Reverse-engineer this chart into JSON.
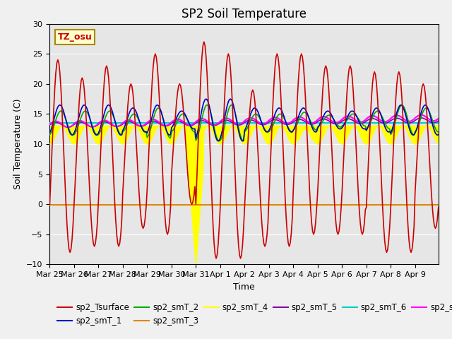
{
  "title": "SP2 Soil Temperature",
  "ylabel": "Soil Temperature (C)",
  "xlabel": "Time",
  "annotation": "TZ_osu",
  "ylim": [
    -10,
    30
  ],
  "x_tick_labels": [
    "Mar 25",
    "Mar 26",
    "Mar 27",
    "Mar 28",
    "Mar 29",
    "Mar 30",
    "Mar 31",
    "Apr 1",
    "Apr 2",
    "Apr 3",
    "Apr 4",
    "Apr 5",
    "Apr 6",
    "Apr 7",
    "Apr 8",
    "Apr 9"
  ],
  "series_colors": {
    "sp2_Tsurface": "#cc0000",
    "sp2_smT_1": "#0000cc",
    "sp2_smT_2": "#00aa00",
    "sp2_smT_3": "#dd8800",
    "sp2_smT_4": "#ffff00",
    "sp2_smT_5": "#8800aa",
    "sp2_smT_6": "#00cccc",
    "sp2_smT_7": "#ff00ff"
  },
  "title_fontsize": 12,
  "label_fontsize": 9,
  "tick_fontsize": 8,
  "legend_fontsize": 8.5
}
